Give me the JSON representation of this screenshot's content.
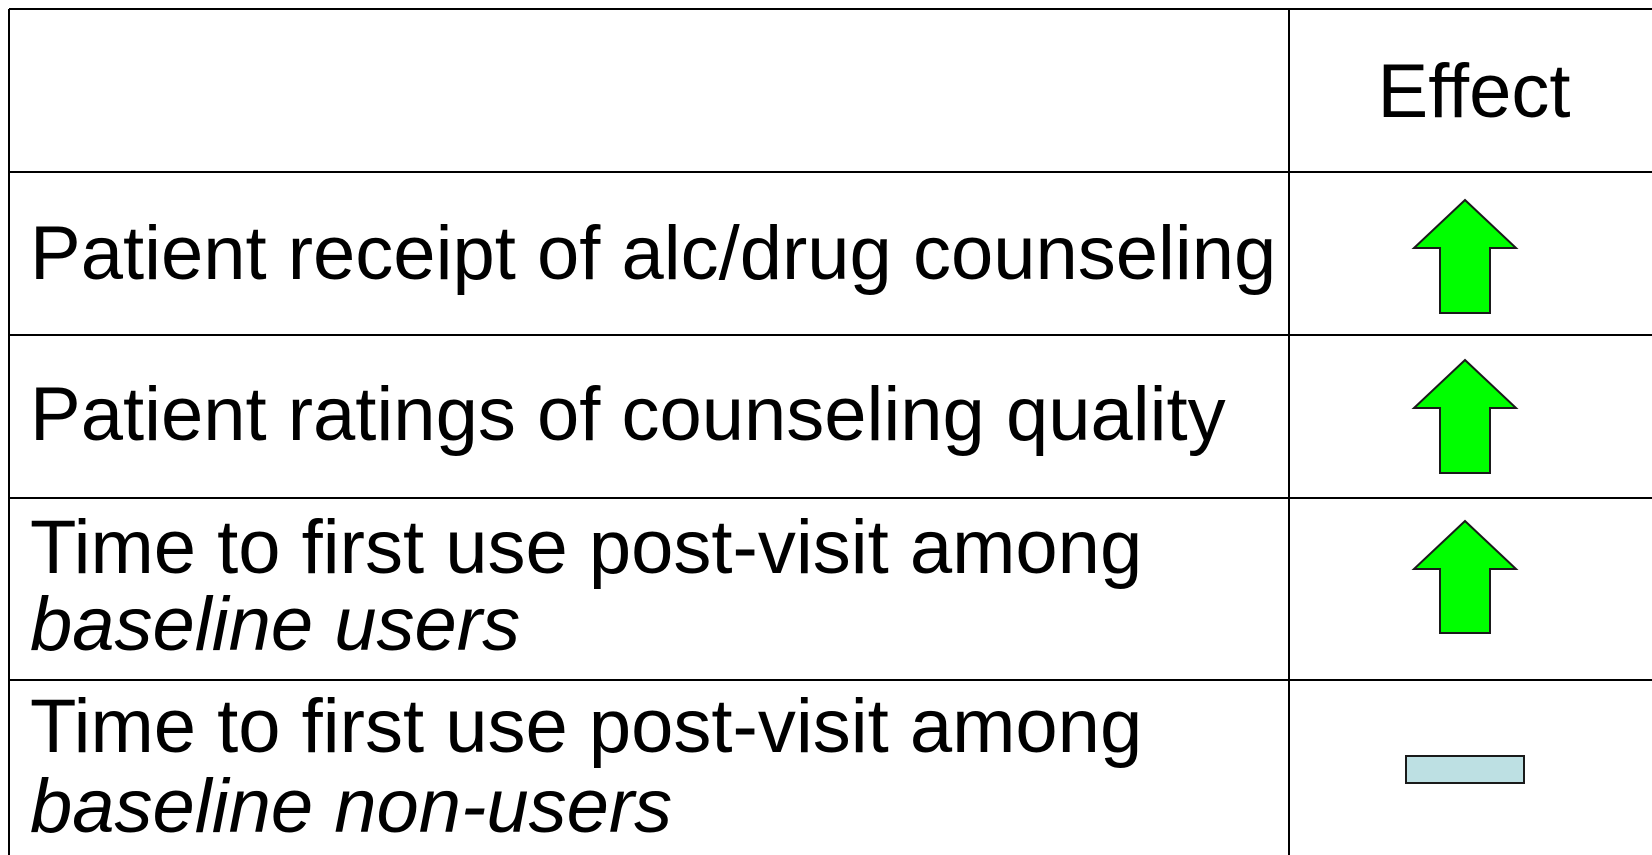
{
  "table": {
    "header": [
      "",
      "Effect"
    ],
    "rows": [
      {
        "label": "Patient receipt of alc/drug counseling"
      },
      {
        "label": "Patient ratings of counseling quality"
      },
      {
        "label": "Time to first use post-visit among",
        "emphasis": "baseline users"
      },
      {
        "label": "Time to first use post-visit among",
        "emphasis": "baseline non-users"
      }
    ]
  }
}
